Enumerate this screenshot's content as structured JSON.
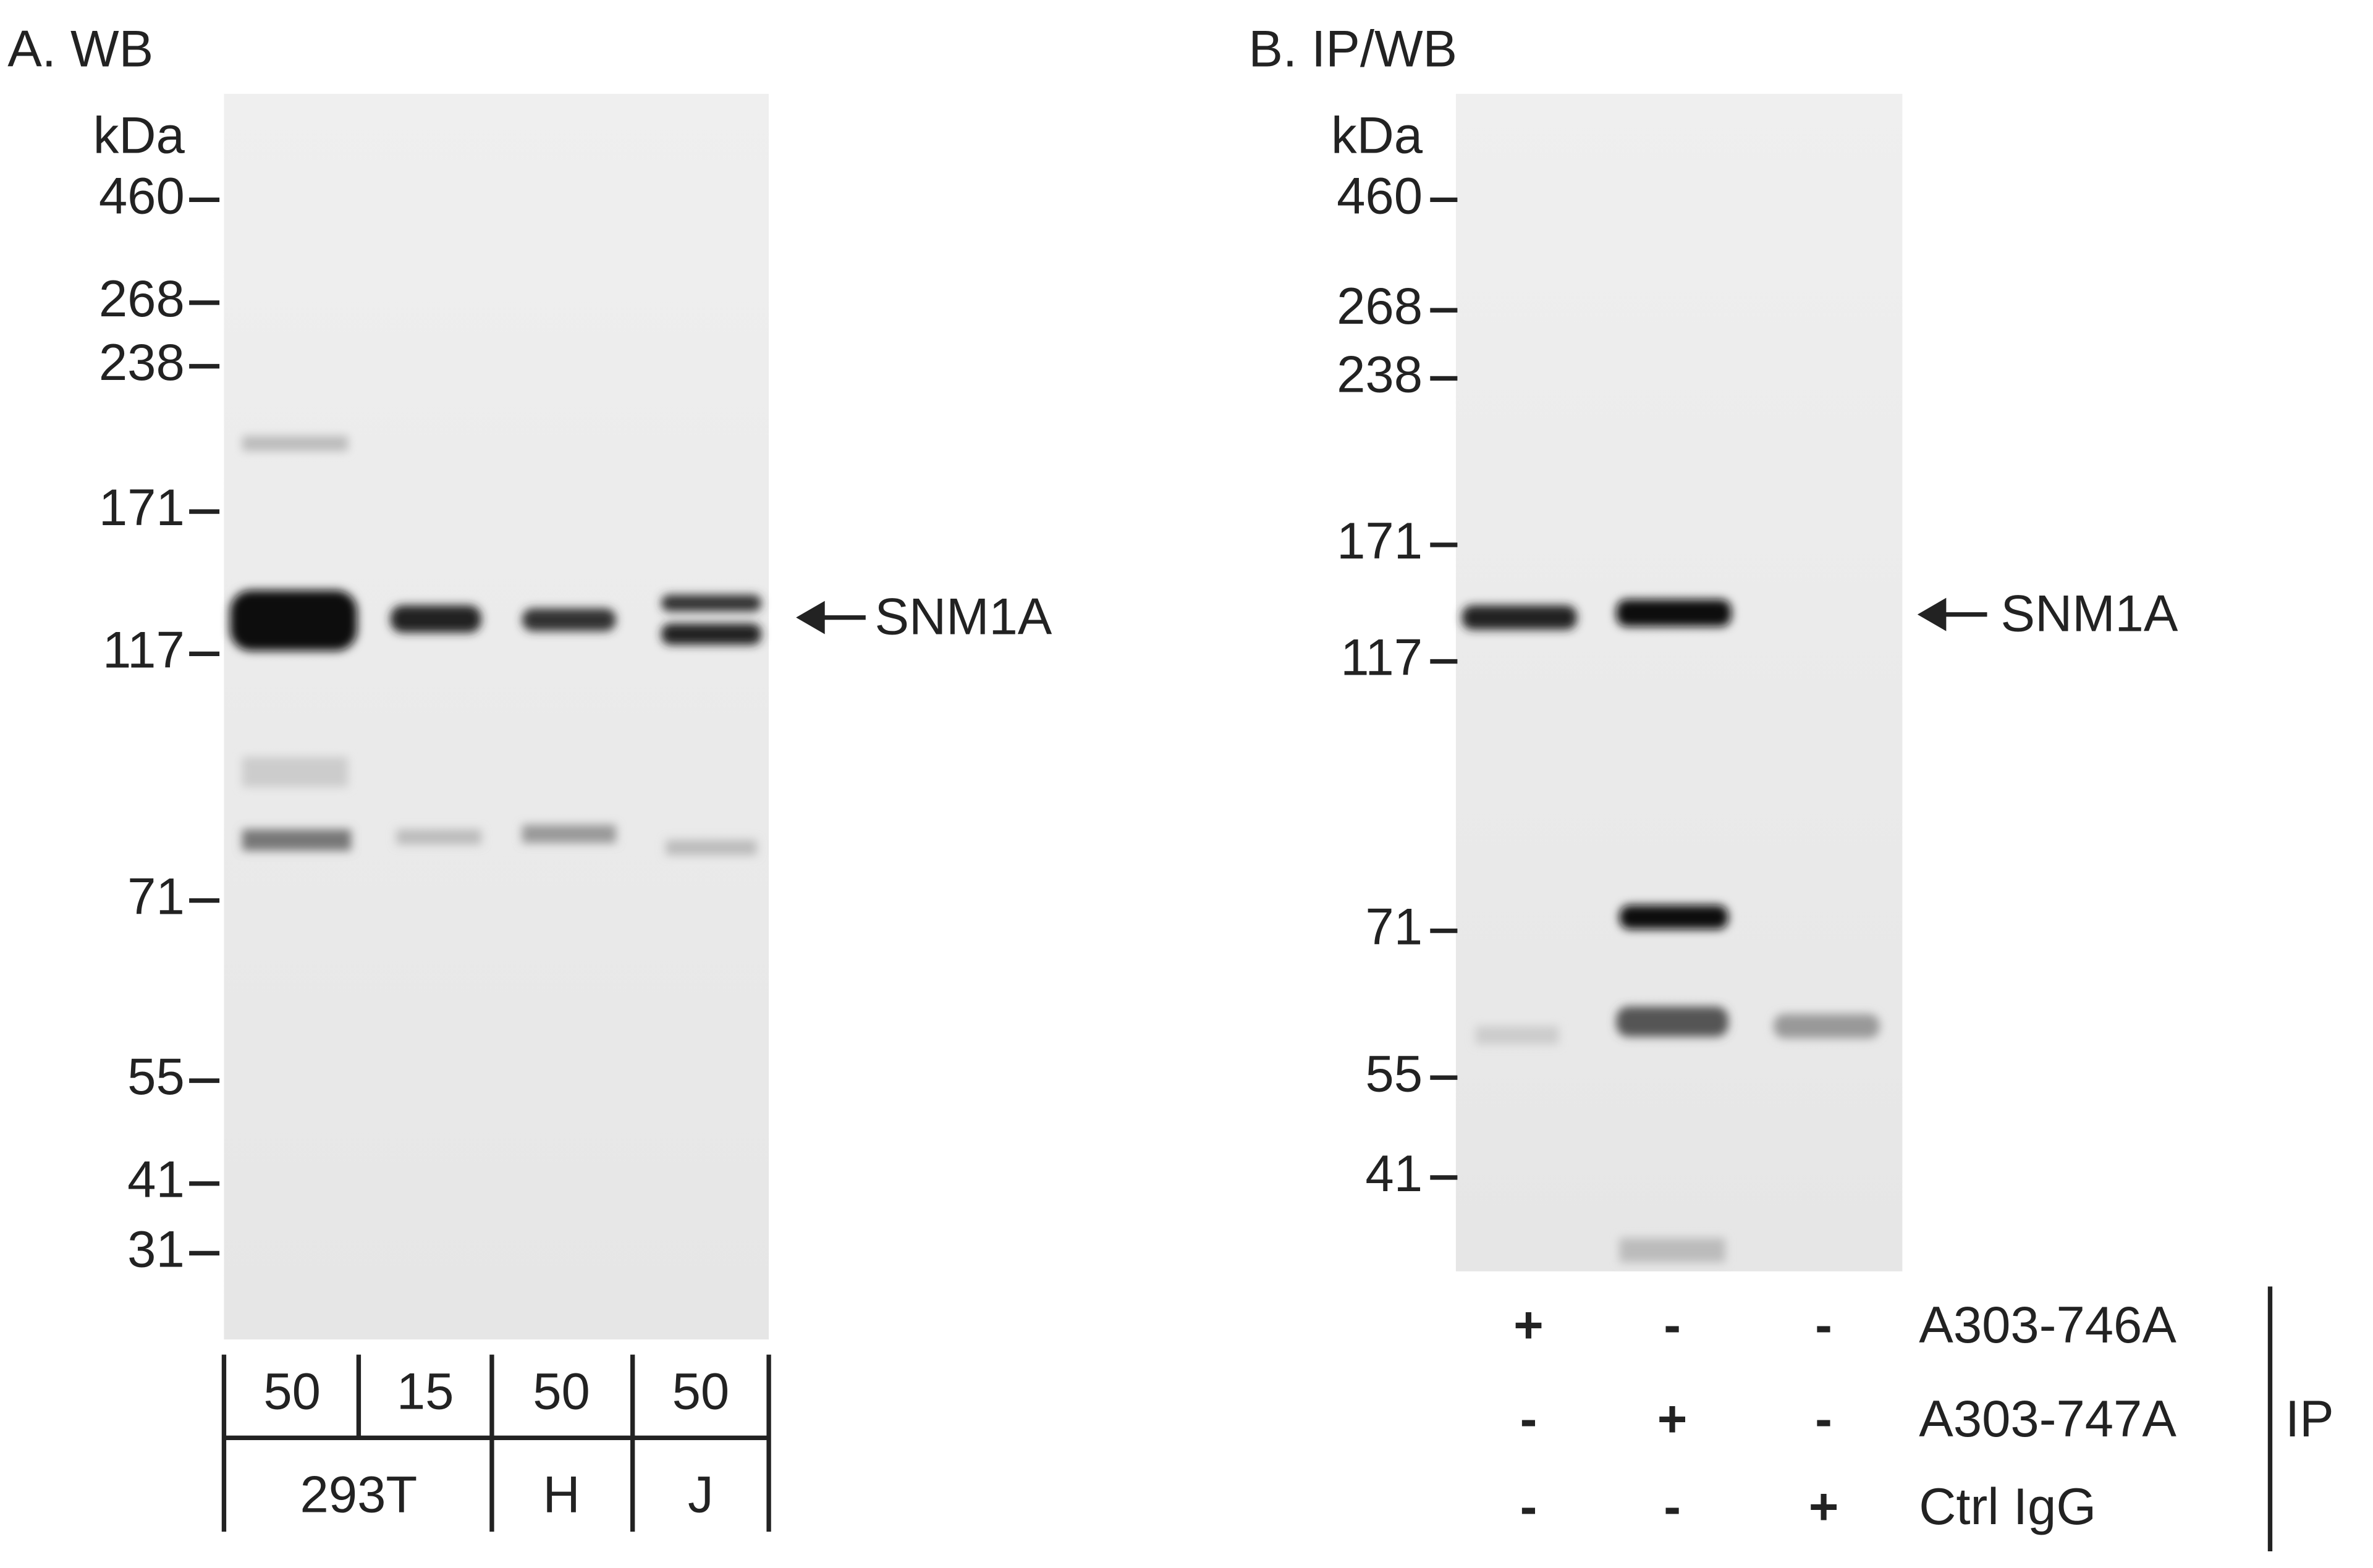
{
  "panels": [
    {
      "title": "A. WB",
      "unit": "kDa",
      "markers": [
        "460",
        "268",
        "238",
        "171",
        "117",
        "71",
        "55",
        "41",
        "31"
      ],
      "target": "SNM1A",
      "amounts": [
        "50",
        "15",
        "50",
        "50"
      ],
      "cell_lines": [
        "293T",
        "H",
        "J"
      ]
    },
    {
      "title": "B. IP/WB",
      "unit": "kDa",
      "markers": [
        "460",
        "268",
        "238",
        "171",
        "117",
        "71",
        "55",
        "41"
      ],
      "target": "SNM1A",
      "ip_rows": [
        {
          "signs": [
            "+",
            "-",
            "-"
          ],
          "label": "A303-746A"
        },
        {
          "signs": [
            "-",
            "+",
            "-"
          ],
          "label": "A303-747A"
        },
        {
          "signs": [
            "-",
            "-",
            "+"
          ],
          "label": "Ctrl IgG"
        }
      ],
      "ip_label": "IP"
    }
  ]
}
